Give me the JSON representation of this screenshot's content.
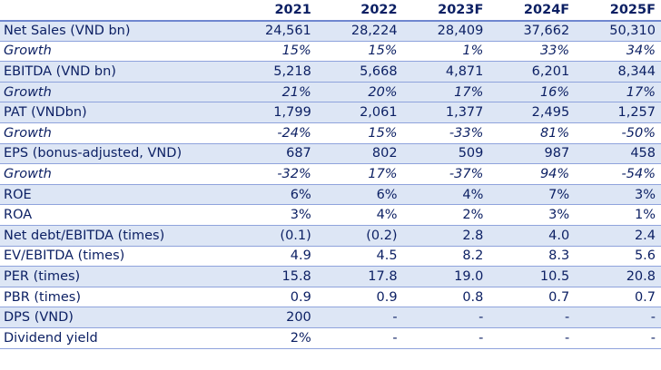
{
  "table": {
    "corner": "",
    "headers": [
      "2021",
      "2022",
      "2023F",
      "2024F",
      "2025F"
    ],
    "rows": [
      {
        "label": "Net Sales (VND bn)",
        "values": [
          "24,561",
          "28,224",
          "28,409",
          "37,662",
          "50,310"
        ],
        "shaded": true,
        "italic": false
      },
      {
        "label": "Growth",
        "values": [
          "15%",
          "15%",
          "1%",
          "33%",
          "34%"
        ],
        "shaded": false,
        "italic": true
      },
      {
        "label": "EBITDA (VND bn)",
        "values": [
          "5,218",
          "5,668",
          "4,871",
          "6,201",
          "8,344"
        ],
        "shaded": true,
        "italic": false
      },
      {
        "label": "Growth",
        "values": [
          "21%",
          "20%",
          "17%",
          "16%",
          "17%"
        ],
        "shaded": true,
        "italic": true
      },
      {
        "label": "PAT (VNDbn)",
        "values": [
          "1,799",
          "2,061",
          "1,377",
          "2,495",
          "1,257"
        ],
        "shaded": true,
        "italic": false
      },
      {
        "label": "Growth",
        "values": [
          "-24%",
          "15%",
          "-33%",
          "81%",
          "-50%"
        ],
        "shaded": false,
        "italic": true
      },
      {
        "label": "EPS (bonus-adjusted, VND)",
        "values": [
          "687",
          "802",
          "509",
          "987",
          "458"
        ],
        "shaded": true,
        "italic": false
      },
      {
        "label": "Growth",
        "values": [
          "-32%",
          "17%",
          "-37%",
          "94%",
          "-54%"
        ],
        "shaded": false,
        "italic": true
      },
      {
        "label": "ROE",
        "values": [
          "6%",
          "6%",
          "4%",
          "7%",
          "3%"
        ],
        "shaded": true,
        "italic": false
      },
      {
        "label": "ROA",
        "values": [
          "3%",
          "4%",
          "2%",
          "3%",
          "1%"
        ],
        "shaded": false,
        "italic": false
      },
      {
        "label": "Net debt/EBITDA (times)",
        "values": [
          "(0.1)",
          "(0.2)",
          "2.8",
          "4.0",
          "2.4"
        ],
        "shaded": true,
        "italic": false
      },
      {
        "label": "EV/EBITDA (times)",
        "values": [
          "4.9",
          "4.5",
          "8.2",
          "8.3",
          "5.6"
        ],
        "shaded": false,
        "italic": false
      },
      {
        "label": "PER (times)",
        "values": [
          "15.8",
          "17.8",
          "19.0",
          "10.5",
          "20.8"
        ],
        "shaded": true,
        "italic": false
      },
      {
        "label": "PBR (times)",
        "values": [
          "0.9",
          "0.9",
          "0.8",
          "0.7",
          "0.7"
        ],
        "shaded": false,
        "italic": false
      },
      {
        "label": "DPS (VND)",
        "values": [
          "200",
          "-",
          "-",
          "-",
          "-"
        ],
        "shaded": true,
        "italic": false
      },
      {
        "label": "Dividend yield",
        "values": [
          "2%",
          "-",
          "-",
          "-",
          "-"
        ],
        "shaded": false,
        "italic": false
      }
    ]
  }
}
